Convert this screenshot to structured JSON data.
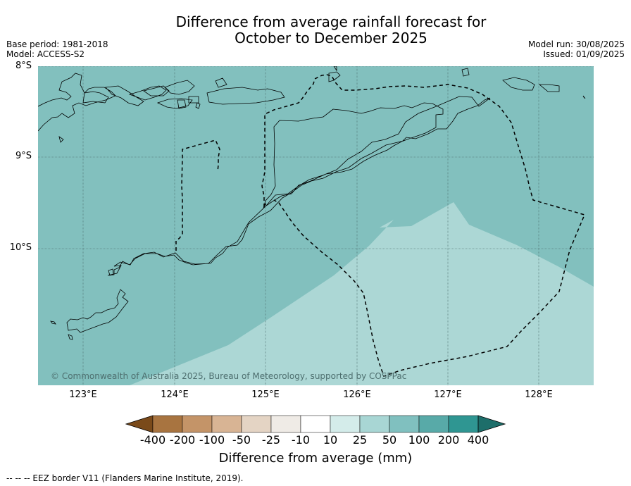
{
  "title_line1": "Difference from average rainfall forecast for",
  "title_line2": "October to December 2025",
  "base_period": "Base period: 1981-2018",
  "model": "Model: ACCESS-S2",
  "model_run": "Model run: 30/08/2025",
  "issued": "Issued: 01/09/2025",
  "lat_labels": [
    "8°S",
    "9°S",
    "10°S"
  ],
  "lon_labels": [
    "123°E",
    "124°E",
    "125°E",
    "126°E",
    "127°E",
    "128°E"
  ],
  "copyright": "© Commonwealth of Australia 2025, Bureau of Meteorology, supported by COSPPac",
  "colorbar": {
    "labels": [
      "-400",
      "-200",
      "-100",
      "-50",
      "-25",
      "-10",
      "10",
      "25",
      "50",
      "100",
      "200",
      "400"
    ],
    "colors": [
      "#7a4a1a",
      "#a87440",
      "#c49468",
      "#d8b494",
      "#e4d4c4",
      "#efebe6",
      "#ffffff",
      "#d4ecea",
      "#a8d6d4",
      "#80c0bf",
      "#58aaa8",
      "#2f9692",
      "#1d6e6a"
    ],
    "title": "Difference from average (mm)"
  },
  "legend_note": "--  --  -- EEZ border V11 (Flanders Marine Institute, 2019).",
  "map_fill_colors": {
    "band_50_100": "#82c0be",
    "band_25_50": "#acd7d5"
  }
}
